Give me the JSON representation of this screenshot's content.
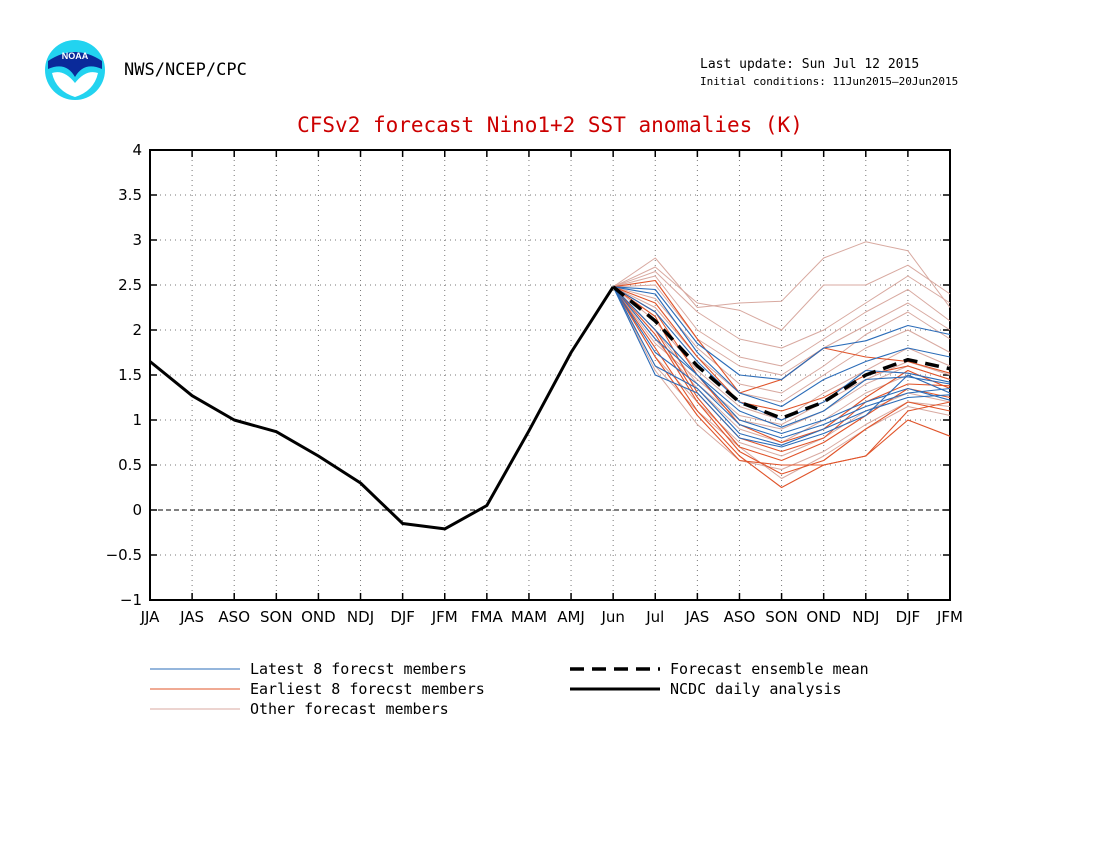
{
  "header": {
    "agency": "NWS/NCEP/CPC",
    "last_update": "Last update: Sun Jul 12 2015",
    "initial_conditions": "Initial conditions: 11Jun2015–20Jun2015",
    "logo_text": "NOAA"
  },
  "colors": {
    "title": "#cc0000",
    "latest_members": "#2b6cb8",
    "earliest_members": "#e0542a",
    "other_members": "#d8a9a0",
    "mean": "#000000",
    "analysis": "#000000"
  },
  "chart_data": {
    "type": "line",
    "title": "CFSv2 forecast Nino1+2 SST anomalies (K)",
    "categories": [
      "JJA",
      "JAS",
      "ASO",
      "SON",
      "OND",
      "NDJ",
      "DJF",
      "JFM",
      "FMA",
      "MAM",
      "AMJ",
      "Jun",
      "Jul",
      "JAS",
      "ASO",
      "SON",
      "OND",
      "NDJ",
      "DJF",
      "JFM"
    ],
    "ylim": [
      -1,
      4
    ],
    "yticks": [
      "4",
      "3.5",
      "3",
      "2.5",
      "2",
      "1.5",
      "1",
      "0.5",
      "0",
      "−0.5",
      "−1"
    ],
    "grid": true,
    "analysis": {
      "name": "NCDC daily analysis",
      "x_start": 0,
      "values": [
        1.65,
        1.27,
        1.0,
        0.87,
        0.6,
        0.3,
        -0.15,
        -0.21,
        0.05,
        0.88,
        1.75,
        2.48
      ]
    },
    "mean": {
      "name": "Forecast ensemble mean",
      "x_start": 11,
      "values": [
        2.48,
        2.1,
        1.6,
        1.2,
        1.02,
        1.2,
        1.5,
        1.67,
        1.57
      ]
    },
    "latest": {
      "name": "Latest 8 forecst members",
      "x_start": 11,
      "members": [
        [
          2.48,
          2.45,
          1.85,
          1.5,
          1.45,
          1.8,
          1.88,
          2.05,
          1.95
        ],
        [
          2.48,
          2.4,
          1.75,
          1.3,
          1.15,
          1.45,
          1.65,
          1.8,
          1.7
        ],
        [
          2.48,
          2.2,
          1.65,
          1.2,
          1.0,
          1.2,
          1.55,
          1.52,
          1.42
        ],
        [
          2.48,
          2.0,
          1.5,
          1.1,
          0.92,
          1.1,
          1.45,
          1.48,
          1.4
        ],
        [
          2.48,
          1.9,
          1.5,
          1.0,
          0.85,
          1.0,
          1.2,
          1.35,
          1.22
        ],
        [
          2.48,
          1.75,
          1.4,
          0.95,
          0.8,
          0.95,
          1.15,
          1.3,
          1.35
        ],
        [
          2.48,
          1.6,
          1.35,
          0.85,
          0.72,
          0.9,
          1.1,
          1.25,
          1.28
        ],
        [
          2.48,
          1.5,
          1.3,
          0.8,
          0.7,
          0.85,
          1.05,
          1.5,
          1.3
        ]
      ]
    },
    "earliest": {
      "name": "Earliest 8 forecst members",
      "x_start": 11,
      "members": [
        [
          2.48,
          2.55,
          1.9,
          1.3,
          1.45,
          1.8,
          1.7,
          1.65,
          1.52
        ],
        [
          2.48,
          2.3,
          1.7,
          1.2,
          1.1,
          1.25,
          1.5,
          1.6,
          1.45
        ],
        [
          2.48,
          2.2,
          1.5,
          0.95,
          0.75,
          0.9,
          1.25,
          1.55,
          1.35
        ],
        [
          2.48,
          2.15,
          1.3,
          0.8,
          0.65,
          0.8,
          1.2,
          1.4,
          1.38
        ],
        [
          2.48,
          2.0,
          1.25,
          0.7,
          0.55,
          0.75,
          1.05,
          1.35,
          1.25
        ],
        [
          2.48,
          1.95,
          1.2,
          0.65,
          0.4,
          0.55,
          0.9,
          1.2,
          1.1
        ],
        [
          2.48,
          1.8,
          1.1,
          0.6,
          0.25,
          0.5,
          0.6,
          1.1,
          1.2
        ],
        [
          2.48,
          1.7,
          1.05,
          0.55,
          0.5,
          0.5,
          0.6,
          1.0,
          0.82
        ]
      ]
    },
    "other": {
      "name": "Other forecast members",
      "x_start": 11,
      "members": [
        [
          2.48,
          2.8,
          2.25,
          2.3,
          2.32,
          2.8,
          2.98,
          2.88,
          2.25
        ],
        [
          2.48,
          2.7,
          2.3,
          2.22,
          2.0,
          2.5,
          2.5,
          2.72,
          2.4
        ],
        [
          2.48,
          2.65,
          2.2,
          1.9,
          1.8,
          2.0,
          2.3,
          2.6,
          2.3
        ],
        [
          2.48,
          2.6,
          2.0,
          1.7,
          1.6,
          1.9,
          2.2,
          2.45,
          2.1
        ],
        [
          2.48,
          2.5,
          1.9,
          1.6,
          1.5,
          1.8,
          2.05,
          2.3,
          2.0
        ],
        [
          2.48,
          2.35,
          1.8,
          1.4,
          1.3,
          1.6,
          1.95,
          2.2,
          1.9
        ],
        [
          2.48,
          2.25,
          1.7,
          1.3,
          1.2,
          1.5,
          1.8,
          2.0,
          1.75
        ],
        [
          2.48,
          2.1,
          1.55,
          1.15,
          1.0,
          1.3,
          1.55,
          1.8,
          1.6
        ],
        [
          2.48,
          2.0,
          1.4,
          1.0,
          0.9,
          1.1,
          1.4,
          1.6,
          1.45
        ],
        [
          2.48,
          1.9,
          1.35,
          0.9,
          0.75,
          1.0,
          1.3,
          1.5,
          1.3
        ],
        [
          2.48,
          1.7,
          1.2,
          0.75,
          0.6,
          0.8,
          1.1,
          1.3,
          1.2
        ],
        [
          2.48,
          1.55,
          0.95,
          0.55,
          0.45,
          0.65,
          0.95,
          1.2,
          1.15
        ],
        [
          2.48,
          1.6,
          1.1,
          0.7,
          0.35,
          0.6,
          0.9,
          1.15,
          1.05
        ],
        [
          2.48,
          1.85,
          1.45,
          1.05,
          0.95,
          1.2,
          1.45,
          1.65,
          1.5
        ]
      ]
    },
    "legend": {
      "placement": "bottom",
      "latest": "Latest 8 forecst members",
      "earliest": "Earliest 8 forecst members",
      "other": "Other forecast members",
      "mean": "Forecast ensemble mean",
      "analysis": "NCDC daily analysis"
    }
  }
}
